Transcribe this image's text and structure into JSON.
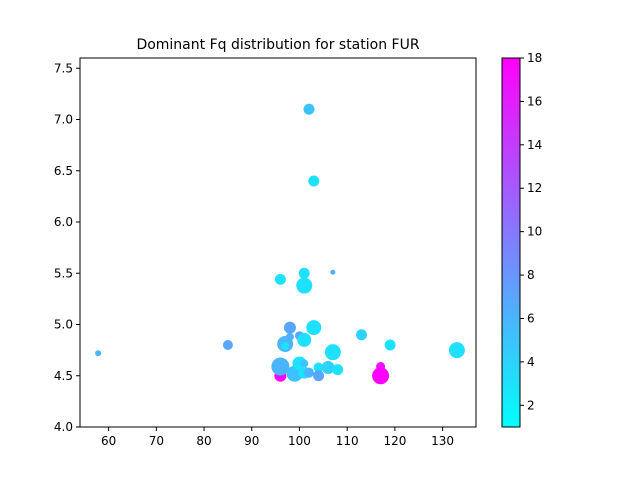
{
  "chart_data": {
    "type": "scatter",
    "title": "Dominant Fq distribution for station FUR",
    "xlabel": "",
    "ylabel": "",
    "xlim": [
      54,
      137
    ],
    "ylim": [
      4.0,
      7.6
    ],
    "x_ticks": [
      60,
      70,
      80,
      90,
      100,
      110,
      120,
      130
    ],
    "y_ticks": [
      4.0,
      4.5,
      5.0,
      5.5,
      6.0,
      6.5,
      7.0,
      7.5
    ],
    "x_tick_labels": [
      "60",
      "70",
      "80",
      "90",
      "100",
      "110",
      "120",
      "130"
    ],
    "y_tick_labels": [
      "4.0",
      "4.5",
      "5.0",
      "5.5",
      "6.0",
      "6.5",
      "7.0",
      "7.5"
    ],
    "colorbar": {
      "colormap": "cool",
      "range": [
        1,
        18
      ],
      "ticks": [
        2,
        4,
        6,
        8,
        10,
        12,
        14,
        16,
        18
      ],
      "tick_labels": [
        "2",
        "4",
        "6",
        "8",
        "10",
        "12",
        "14",
        "16",
        "18"
      ],
      "color_low": "#00ffff",
      "color_high": "#ff00ff"
    },
    "grid": false,
    "points": [
      {
        "x": 57.8,
        "y": 4.72,
        "c": 6,
        "s": 3
      },
      {
        "x": 85,
        "y": 4.8,
        "c": 7,
        "s": 5
      },
      {
        "x": 96,
        "y": 5.44,
        "c": 3,
        "s": 5.5
      },
      {
        "x": 96,
        "y": 4.5,
        "c": 18,
        "s": 6
      },
      {
        "x": 96,
        "y": 4.59,
        "c": 6,
        "s": 9
      },
      {
        "x": 97,
        "y": 4.81,
        "c": 6,
        "s": 8
      },
      {
        "x": 97,
        "y": 4.79,
        "c": 3,
        "s": 4
      },
      {
        "x": 98,
        "y": 4.97,
        "c": 7,
        "s": 6
      },
      {
        "x": 98,
        "y": 4.88,
        "c": 6,
        "s": 4
      },
      {
        "x": 99,
        "y": 4.52,
        "c": 5,
        "s": 8
      },
      {
        "x": 100,
        "y": 4.89,
        "c": 7,
        "s": 4.5
      },
      {
        "x": 100,
        "y": 4.62,
        "c": 3,
        "s": 7
      },
      {
        "x": 101,
        "y": 4.62,
        "c": 5,
        "s": 4
      },
      {
        "x": 101,
        "y": 4.85,
        "c": 3,
        "s": 7
      },
      {
        "x": 101,
        "y": 5.5,
        "c": 3,
        "s": 5.5
      },
      {
        "x": 101,
        "y": 5.38,
        "c": 3,
        "s": 8
      },
      {
        "x": 101,
        "y": 4.53,
        "c": 3,
        "s": 6
      },
      {
        "x": 102,
        "y": 7.1,
        "c": 5,
        "s": 5.5
      },
      {
        "x": 102,
        "y": 4.53,
        "c": 6,
        "s": 5
      },
      {
        "x": 103,
        "y": 6.4,
        "c": 3,
        "s": 5.5
      },
      {
        "x": 103,
        "y": 4.97,
        "c": 3,
        "s": 7.5
      },
      {
        "x": 104,
        "y": 4.58,
        "c": 3,
        "s": 5
      },
      {
        "x": 104,
        "y": 4.5,
        "c": 7,
        "s": 5.5
      },
      {
        "x": 106,
        "y": 4.58,
        "c": 4,
        "s": 6.5
      },
      {
        "x": 107,
        "y": 4.73,
        "c": 3,
        "s": 8
      },
      {
        "x": 107,
        "y": 5.51,
        "c": 6,
        "s": 2.5
      },
      {
        "x": 108,
        "y": 4.56,
        "c": 3,
        "s": 5.5
      },
      {
        "x": 113,
        "y": 4.9,
        "c": 4,
        "s": 5.5
      },
      {
        "x": 117,
        "y": 4.59,
        "c": 17,
        "s": 4.5
      },
      {
        "x": 117,
        "y": 4.5,
        "c": 18,
        "s": 8.5
      },
      {
        "x": 119,
        "y": 4.8,
        "c": 3,
        "s": 5.5
      },
      {
        "x": 133,
        "y": 4.75,
        "c": 3,
        "s": 8
      }
    ]
  }
}
